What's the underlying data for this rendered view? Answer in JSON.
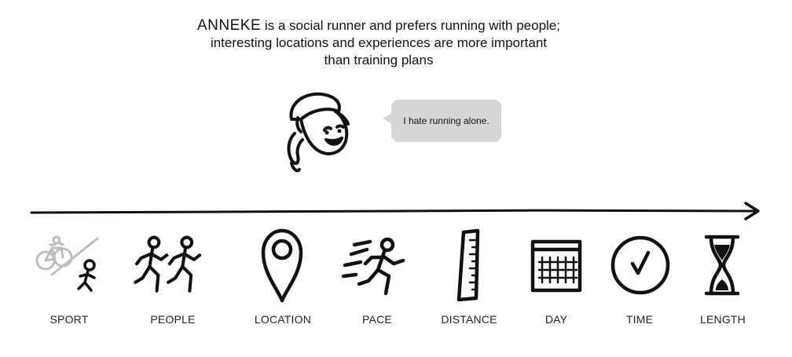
{
  "intro": {
    "name": "ANNEKE",
    "line1_rest": " is a social runner and prefers running with people;",
    "line2": "interesting locations and experiences are more important",
    "line3": "than training plans"
  },
  "bubble": {
    "text": "I hate running alone."
  },
  "icons": [
    {
      "icon": "sport-icon",
      "label": "SPORT",
      "muted": true
    },
    {
      "icon": "people-icon",
      "label": "PEOPLE"
    },
    {
      "icon": "location-pin-icon",
      "label": "LOCATION"
    },
    {
      "icon": "pace-icon",
      "label": "PACE"
    },
    {
      "icon": "distance-ruler-icon",
      "label": "DISTANCE"
    },
    {
      "icon": "calendar-icon",
      "label": "DAY"
    },
    {
      "icon": "clock-icon",
      "label": "TIME"
    },
    {
      "icon": "hourglass-icon",
      "label": "LENGTH"
    }
  ],
  "colors": {
    "ink": "#111111",
    "muted": "#bdbdbd",
    "bubble": "#d6d6d6"
  }
}
